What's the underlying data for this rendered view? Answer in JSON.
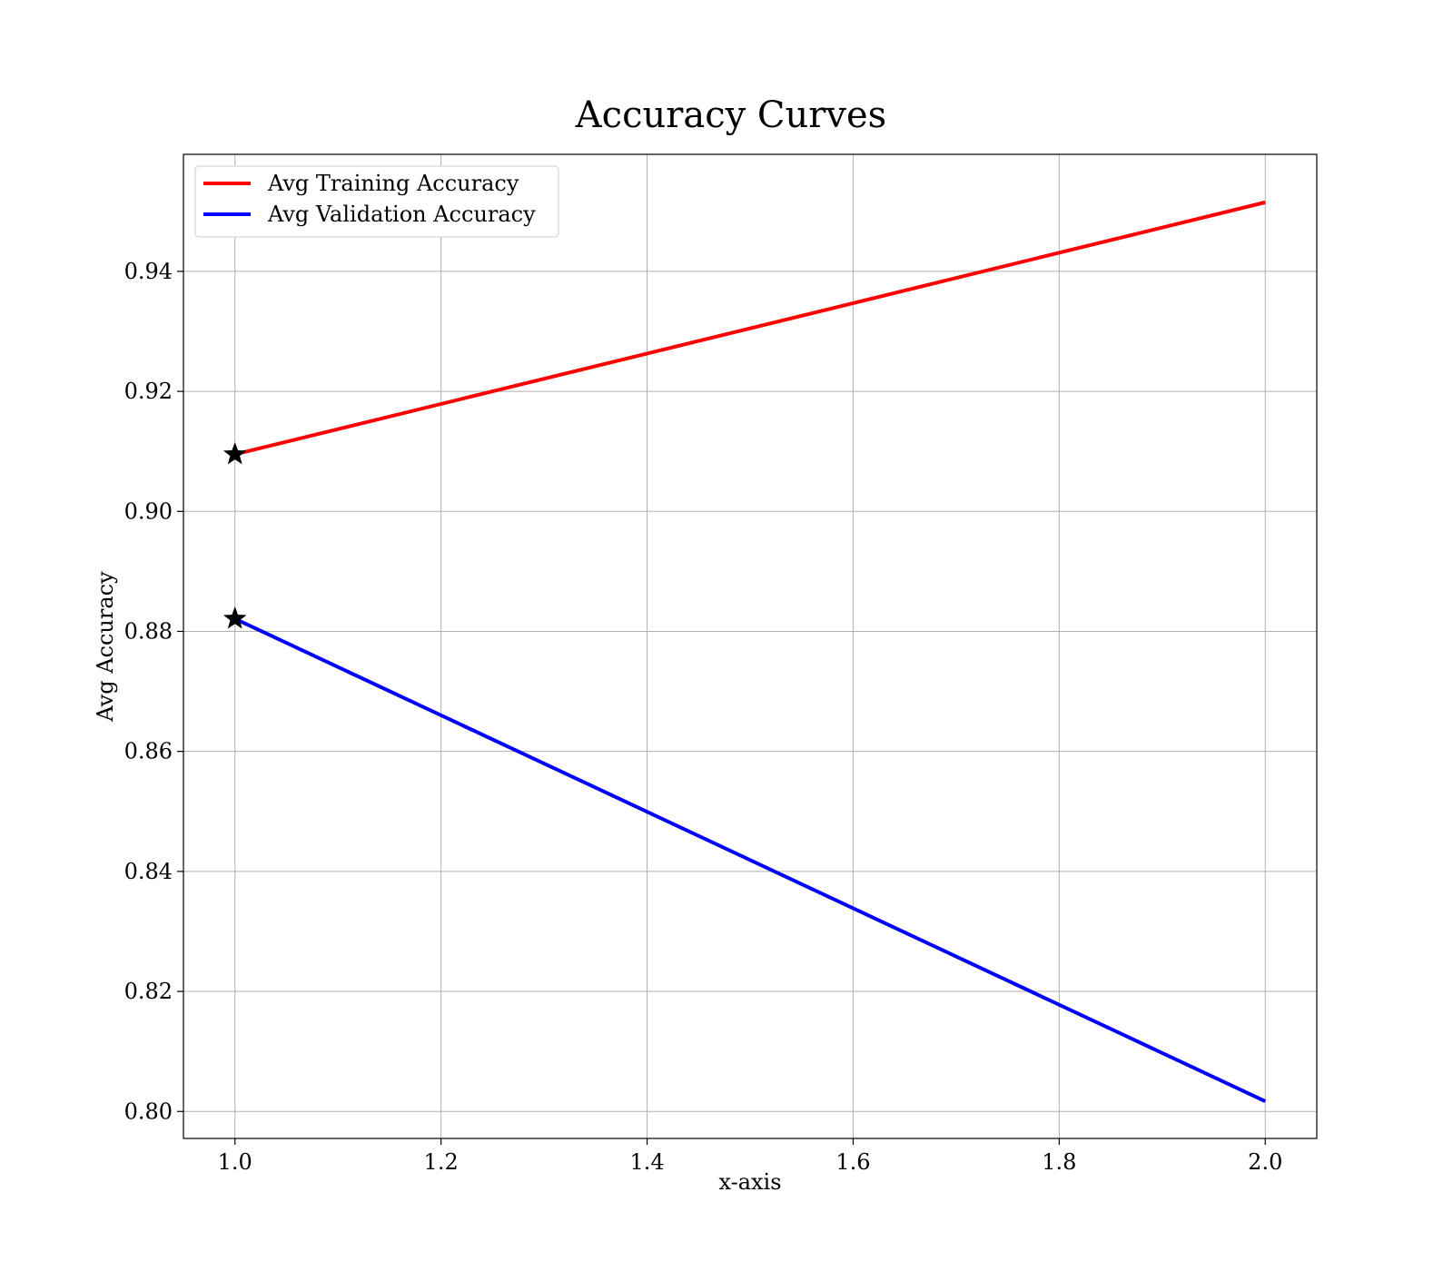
{
  "chart_data": {
    "type": "line",
    "title": "Accuracy Curves",
    "xlabel": "x-axis",
    "ylabel": "Avg Accuracy",
    "xlim": [
      0.95,
      2.05
    ],
    "ylim": [
      0.7955,
      0.9595
    ],
    "xticks": [
      1.0,
      1.2,
      1.4,
      1.6,
      1.8,
      2.0
    ],
    "xtick_labels": [
      "1.0",
      "1.2",
      "1.4",
      "1.6",
      "1.8",
      "2.0"
    ],
    "yticks": [
      0.8,
      0.82,
      0.84,
      0.86,
      0.88,
      0.9,
      0.92,
      0.94
    ],
    "ytick_labels": [
      "0.80",
      "0.82",
      "0.84",
      "0.86",
      "0.88",
      "0.90",
      "0.92",
      "0.94"
    ],
    "grid": true,
    "legend_position": "top-left",
    "series": [
      {
        "name": "Avg Training Accuracy",
        "color": "#ff0000",
        "x": [
          1.0,
          2.0
        ],
        "y": [
          0.9095,
          0.9515
        ],
        "best_marker": {
          "x": 1.0,
          "y": 0.9095,
          "marker": "star"
        }
      },
      {
        "name": "Avg Validation Accuracy",
        "color": "#0000ff",
        "x": [
          1.0,
          2.0
        ],
        "y": [
          0.8821,
          0.8017
        ],
        "best_marker": {
          "x": 1.0,
          "y": 0.8821,
          "marker": "star"
        }
      }
    ]
  }
}
